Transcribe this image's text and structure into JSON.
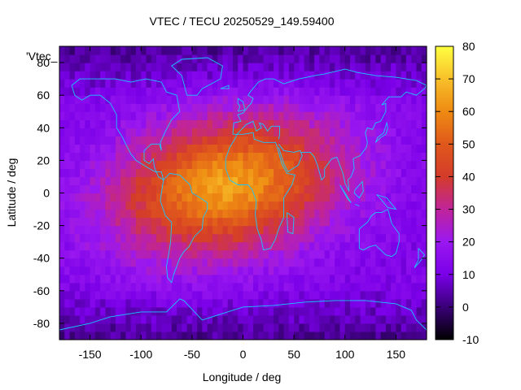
{
  "chart_data": {
    "type": "heatmap",
    "title": "VTEC / TECU 20250529_149.59400",
    "xlabel": "Longitude / deg",
    "ylabel": "Latitude / deg",
    "series_label": "'Vtec_",
    "xlim": [
      -180,
      180
    ],
    "ylim": [
      -90,
      90
    ],
    "x_ticks": [
      -150,
      -100,
      -50,
      0,
      50,
      100,
      150
    ],
    "y_ticks": [
      -80,
      -60,
      -40,
      -20,
      0,
      20,
      40,
      60,
      80
    ],
    "colorbar": {
      "range": [
        -10,
        80
      ],
      "ticks": [
        -10,
        0,
        10,
        20,
        30,
        40,
        50,
        60,
        70,
        80
      ],
      "palette": [
        "#000000",
        "#3a0078",
        "#7a00e8",
        "#9a18f0",
        "#c0249a",
        "#d43c2a",
        "#e0581c",
        "#ee8a12",
        "#f8c02a",
        "#ffff40"
      ]
    },
    "field_model": {
      "background_tecu": 12,
      "crest_peak_tecu": 64,
      "crest_center_lon": -15,
      "crest_center_lat": 5,
      "crest_lon_halfwidth": 75,
      "crest_lat_halfwidth": 28,
      "noise_amplitude_tecu": 4
    },
    "coastline_color": "#19c8ff"
  }
}
